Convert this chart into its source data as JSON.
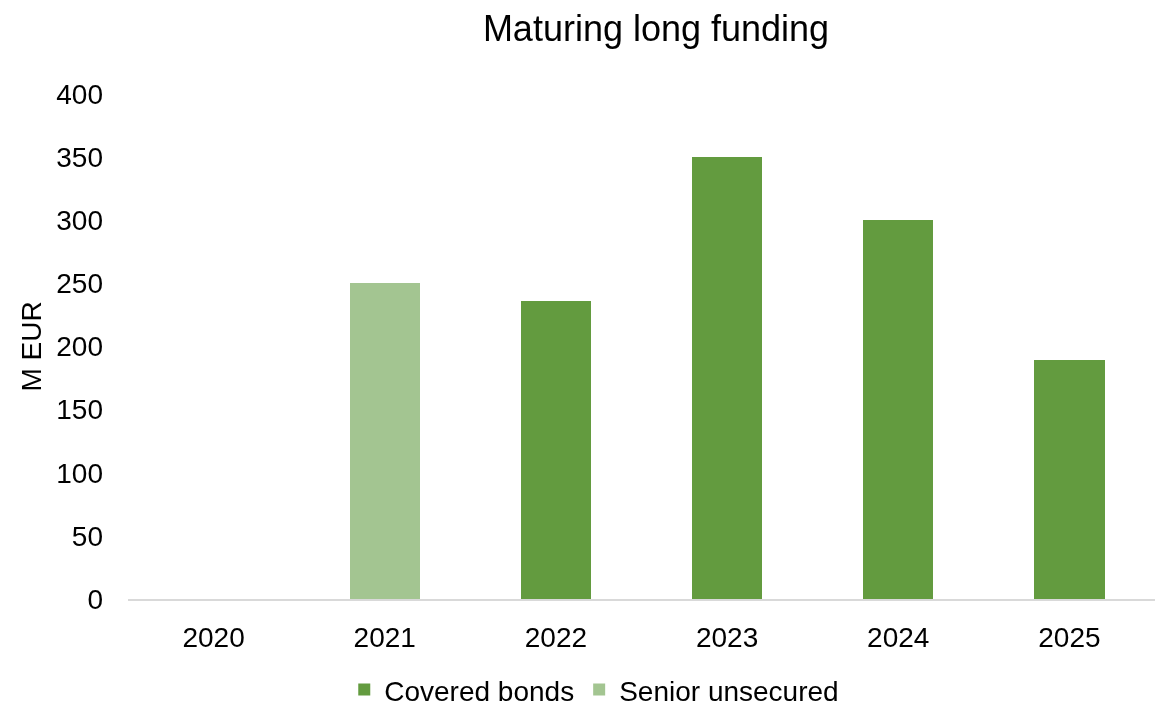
{
  "chart_data": {
    "type": "bar",
    "title": "Maturing long funding",
    "ylabel": "M EUR",
    "categories": [
      "2020",
      "2021",
      "2022",
      "2023",
      "2024",
      "2025"
    ],
    "series": [
      {
        "name": "Covered bonds",
        "color": "#639b3f",
        "values": [
          null,
          null,
          236,
          350,
          300,
          189
        ]
      },
      {
        "name": "Senior unsecured",
        "color": "#a3c591",
        "values": [
          null,
          250,
          null,
          null,
          null,
          null
        ]
      }
    ],
    "stacked": true,
    "ylim": [
      0,
      400
    ],
    "yticks": [
      0,
      50,
      100,
      150,
      200,
      250,
      300,
      350,
      400
    ],
    "legend": "bottom"
  }
}
